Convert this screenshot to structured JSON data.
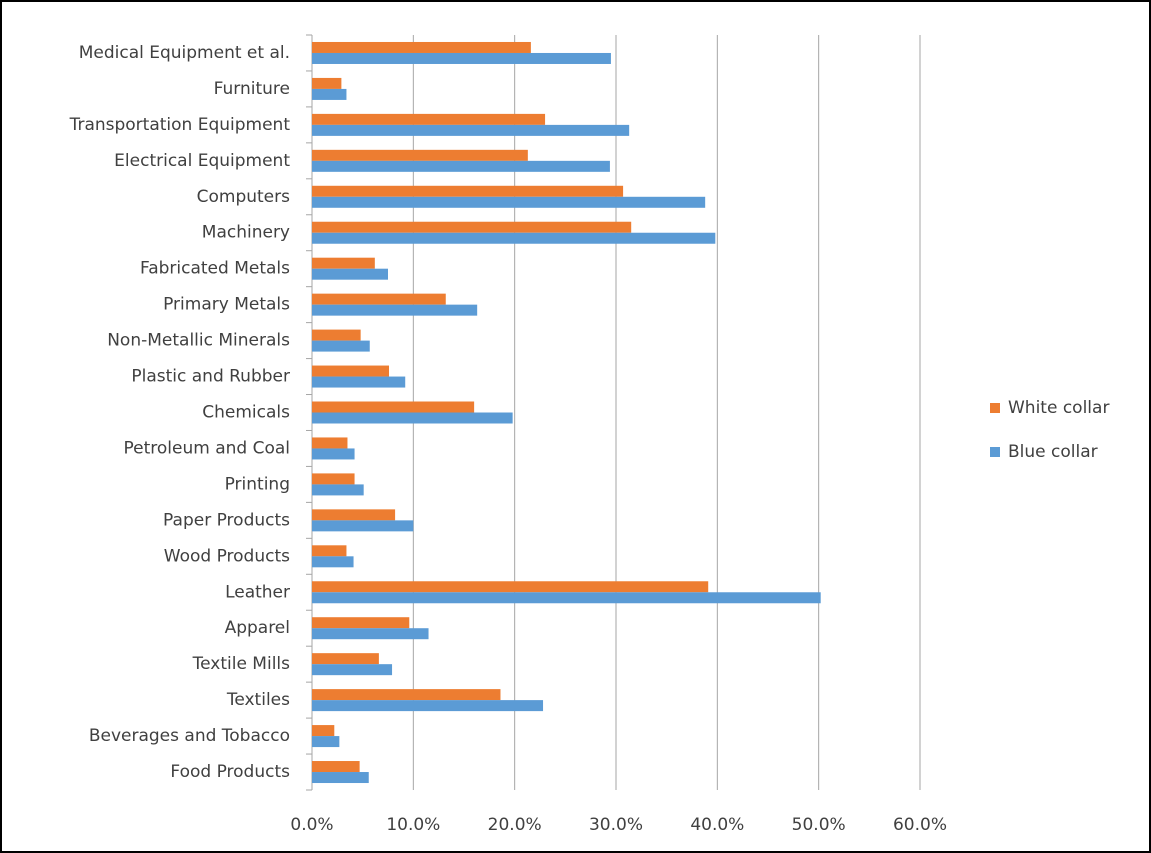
{
  "chart_data": {
    "type": "hbar",
    "categories": [
      "Medical Equipment et al.",
      "Furniture",
      "Transportation Equipment",
      "Electrical Equipment",
      "Computers",
      "Machinery",
      "Fabricated Metals",
      "Primary Metals",
      "Non-Metallic Minerals",
      "Plastic and Rubber",
      "Chemicals",
      "Petroleum and Coal",
      "Printing",
      "Paper Products",
      "Wood Products",
      "Leather",
      "Apparel",
      "Textile Mills",
      "Textiles",
      "Beverages and Tobacco",
      "Food Products"
    ],
    "series": [
      {
        "name": "White collar",
        "color": "#ed7d31",
        "values": [
          21.6,
          2.9,
          23.0,
          21.3,
          30.7,
          31.5,
          6.2,
          13.2,
          4.8,
          7.6,
          16.0,
          3.5,
          4.2,
          8.2,
          3.4,
          39.1,
          9.6,
          6.6,
          18.6,
          2.2,
          4.7
        ]
      },
      {
        "name": "Blue collar",
        "color": "#5b9bd5",
        "values": [
          29.5,
          3.4,
          31.3,
          29.4,
          38.8,
          39.8,
          7.5,
          16.3,
          5.7,
          9.2,
          19.8,
          4.2,
          5.1,
          10.0,
          4.1,
          50.2,
          11.5,
          7.9,
          22.8,
          2.7,
          5.6
        ]
      }
    ],
    "xlim": [
      0,
      60
    ],
    "xticks": [
      {
        "value": 0,
        "label": "0.0%"
      },
      {
        "value": 10,
        "label": "10.0%"
      },
      {
        "value": 20,
        "label": "20.0%"
      },
      {
        "value": 30,
        "label": "30.0%"
      },
      {
        "value": 40,
        "label": "40.0%"
      },
      {
        "value": 50,
        "label": "50.0%"
      },
      {
        "value": 60,
        "label": "60.0%"
      }
    ],
    "grid": true,
    "legend": "right"
  }
}
